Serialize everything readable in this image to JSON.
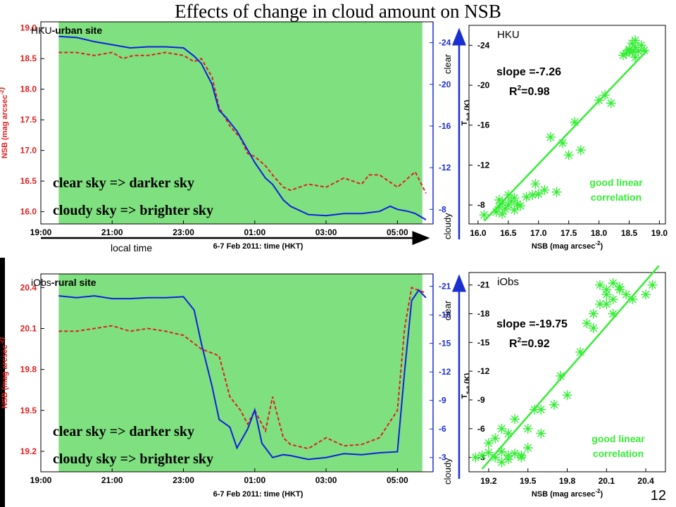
{
  "slide": {
    "title": "Effects of change in cloud amount on NSB",
    "page_number": "12",
    "local_time_label": "local time",
    "clear_label": "clear",
    "cloudy_label": "cloudy",
    "statement_clear": "clear sky => darker sky",
    "statement_cloudy": "cloudy sky => brighter sky"
  },
  "colors": {
    "plot_bg": "#7fe07f",
    "nsb_series": "#e02020",
    "tsa_series": "#1020e0",
    "scatter": "#33ee33",
    "nsb_axis": "#e02020",
    "tsa_axis": "#1a2fd0",
    "arrow": "#1a2fd0"
  },
  "chart_data": [
    {
      "type": "line",
      "site": "HKU",
      "site_suffix": "-urban site",
      "xlabel": "6-7 Feb 2011: time (HKT)",
      "x_ticks": [
        "19:00",
        "21:00",
        "23:00",
        "01:00",
        "03:00",
        "05:00"
      ],
      "xlim": [
        19.0,
        30.0
      ],
      "shaded_range": [
        19.5,
        29.7
      ],
      "ylabel_left": "NSB (mag arcsec",
      "ylabel_left_sup": "-2",
      "ylabel_left_end": ")",
      "ylim_left": [
        15.8,
        19.1
      ],
      "y_ticks_left": [
        "16.0",
        "16.5",
        "17.0",
        "17.5",
        "18.0",
        "18.5",
        "19.0"
      ],
      "y_tick_values_left": [
        16.0,
        16.5,
        17.0,
        17.5,
        18.0,
        18.5,
        19.0
      ],
      "ylabel_right": "T",
      "ylabel_right_sub": "s-a",
      "ylabel_right_end": " (K)",
      "ylim_right": [
        -6.6,
        -26.0
      ],
      "y_ticks_right": [
        "-8",
        "-12",
        "-16",
        "-20",
        "-24"
      ],
      "y_tick_values_right": [
        -8,
        -12,
        -16,
        -20,
        -24
      ],
      "series": [
        {
          "name": "NSB",
          "axis": "left",
          "x": [
            19.5,
            20.0,
            20.5,
            21.0,
            21.3,
            21.6,
            22.0,
            22.5,
            23.0,
            23.3,
            23.5,
            23.8,
            24.0,
            24.3,
            24.6,
            24.8,
            25.0,
            25.3,
            25.5,
            25.8,
            26.0,
            26.5,
            27.0,
            27.5,
            28.0,
            28.2,
            28.5,
            29.0,
            29.5,
            29.8
          ],
          "values": [
            18.6,
            18.6,
            18.55,
            18.6,
            18.5,
            18.55,
            18.55,
            18.6,
            18.55,
            18.45,
            18.5,
            18.2,
            17.7,
            17.4,
            17.2,
            16.95,
            16.9,
            16.75,
            16.6,
            16.4,
            16.35,
            16.45,
            16.4,
            16.55,
            16.45,
            16.6,
            16.6,
            16.4,
            16.65,
            16.3
          ]
        },
        {
          "name": "Tsa",
          "axis": "right",
          "x": [
            19.5,
            20.0,
            20.5,
            21.0,
            21.5,
            22.0,
            22.5,
            23.0,
            23.3,
            23.5,
            23.8,
            24.0,
            24.2,
            24.5,
            24.8,
            25.0,
            25.3,
            25.5,
            25.8,
            26.0,
            26.5,
            27.0,
            27.5,
            28.0,
            28.5,
            28.8,
            29.0,
            29.3,
            29.5,
            29.8
          ],
          "values": [
            -24.6,
            -24.5,
            -24.1,
            -23.8,
            -23.5,
            -23.6,
            -23.6,
            -23.5,
            -22.7,
            -22.0,
            -20.0,
            -17.5,
            -16.8,
            -15.5,
            -13.7,
            -12.5,
            -11.0,
            -10.4,
            -8.9,
            -8.3,
            -7.5,
            -7.4,
            -7.6,
            -7.6,
            -7.8,
            -8.3,
            -8.0,
            -7.8,
            -7.6,
            -7.0
          ]
        }
      ]
    },
    {
      "type": "scatter",
      "site": "HKU",
      "xlabel": "NSB (mag arcsec",
      "xlabel_sup": "-2",
      "xlabel_end": ")",
      "xlim": [
        15.85,
        19.1
      ],
      "x_ticks": [
        "16.0",
        "16.5",
        "17.0",
        "17.5",
        "18.0",
        "18.5",
        "19.0"
      ],
      "x_tick_values": [
        16.0,
        16.5,
        17.0,
        17.5,
        18.0,
        18.5,
        19.0
      ],
      "ylim": [
        -6.1,
        -26.0
      ],
      "y_ticks": [
        "-8",
        "-12",
        "-16",
        "-20",
        "-24"
      ],
      "y_tick_values": [
        -8,
        -12,
        -16,
        -20,
        -24
      ],
      "slope_text": "slope =-7.26",
      "r2_prefix": "R",
      "r2_sup": "2",
      "r2_value": "=0.98",
      "note_line1": "good linear",
      "note_line2": "correlation",
      "fit_line": {
        "x": [
          16.1,
          18.8
        ],
        "y": [
          -6.4,
          -23.5
        ]
      },
      "points": {
        "x": [
          16.1,
          16.3,
          16.35,
          16.4,
          16.45,
          16.5,
          16.55,
          16.6,
          16.6,
          16.65,
          16.7,
          16.4,
          16.35,
          16.5,
          16.8,
          16.9,
          17.0,
          17.1,
          16.95,
          17.3,
          17.5,
          17.7,
          17.4,
          17.2,
          17.6,
          18.0,
          18.1,
          18.2,
          18.45,
          18.5,
          18.55,
          18.6,
          18.65,
          18.7,
          18.5,
          18.4,
          18.6,
          18.75,
          18.55,
          18.6
        ],
        "y": [
          -7.0,
          -7.3,
          -7.8,
          -8.2,
          -7.6,
          -8.0,
          -8.4,
          -8.7,
          -7.5,
          -8.1,
          -7.9,
          -7.1,
          -8.5,
          -9.0,
          -8.8,
          -9.0,
          -9.1,
          -9.5,
          -10.1,
          -9.3,
          -13.0,
          -13.5,
          -14.2,
          -14.8,
          -16.3,
          -18.5,
          -19.0,
          -18.2,
          -23.2,
          -23.5,
          -23.3,
          -23.8,
          -23.4,
          -24.0,
          -23.6,
          -23.0,
          -22.8,
          -23.5,
          -24.2,
          -24.5
        ]
      }
    },
    {
      "type": "line",
      "site": "iObs",
      "site_suffix": "-rural site",
      "xlabel": "6-7 Feb 2011: time (HKT)",
      "x_ticks": [
        "19:00",
        "21:00",
        "23:00",
        "01:00",
        "03:00",
        "05:00"
      ],
      "xlim": [
        19.0,
        30.0
      ],
      "shaded_range": [
        19.5,
        29.7
      ],
      "ylabel_left": "NSB (mag arcsec",
      "ylabel_left_sup": "-2",
      "ylabel_left_end": ")",
      "ylim_left": [
        19.05,
        20.5
      ],
      "y_ticks_left": [
        "19.2",
        "19.5",
        "19.8",
        "20.1",
        "20.4"
      ],
      "y_tick_values_left": [
        19.2,
        19.5,
        19.8,
        20.1,
        20.4
      ],
      "ylabel_right": "T",
      "ylabel_right_sub": "s-a",
      "ylabel_right_end": " (K)",
      "ylim_right": [
        -1.5,
        -22.3
      ],
      "y_ticks_right": [
        "-3",
        "-6",
        "-9",
        "-12",
        "-15",
        "-18",
        "-21"
      ],
      "y_tick_values_right": [
        -3,
        -6,
        -9,
        -12,
        -15,
        -18,
        -21
      ],
      "series": [
        {
          "name": "NSB",
          "axis": "left",
          "x": [
            19.5,
            20.0,
            20.5,
            21.0,
            21.5,
            22.0,
            22.5,
            23.0,
            23.5,
            24.0,
            24.3,
            24.6,
            24.8,
            25.0,
            25.3,
            25.5,
            25.8,
            26.0,
            26.5,
            27.0,
            27.5,
            28.0,
            28.5,
            29.0,
            29.2,
            29.4,
            29.6,
            29.8
          ],
          "values": [
            20.08,
            20.08,
            20.1,
            20.12,
            20.08,
            20.1,
            20.08,
            20.05,
            19.95,
            19.9,
            19.6,
            19.5,
            19.4,
            19.5,
            19.35,
            19.6,
            19.3,
            19.25,
            19.22,
            19.3,
            19.24,
            19.25,
            19.3,
            19.5,
            20.1,
            20.4,
            20.38,
            20.36
          ]
        },
        {
          "name": "Tsa",
          "axis": "right",
          "x": [
            19.5,
            20.0,
            20.5,
            21.0,
            21.5,
            22.0,
            22.5,
            23.0,
            23.3,
            23.5,
            23.8,
            24.0,
            24.3,
            24.5,
            24.8,
            25.0,
            25.2,
            25.5,
            25.8,
            26.0,
            26.5,
            27.0,
            27.5,
            28.0,
            28.5,
            29.0,
            29.2,
            29.4,
            29.6,
            29.8
          ],
          "values": [
            -20.0,
            -19.8,
            -20.0,
            -19.7,
            -19.7,
            -19.8,
            -19.8,
            -19.9,
            -18.5,
            -15.0,
            -10.5,
            -7.0,
            -6.2,
            -4.0,
            -6.0,
            -8.0,
            -4.5,
            -3.0,
            -3.3,
            -3.2,
            -2.8,
            -3.0,
            -3.4,
            -3.3,
            -3.5,
            -3.6,
            -12.0,
            -19.5,
            -20.6,
            -19.8
          ]
        }
      ]
    },
    {
      "type": "scatter",
      "site": "iObs",
      "xlabel": "NSB (mag arcsec",
      "xlabel_sup": "-2",
      "xlabel_end": ")",
      "xlim": [
        19.05,
        20.55
      ],
      "x_ticks": [
        "19.2",
        "19.5",
        "19.8",
        "20.1",
        "20.4"
      ],
      "x_tick_values": [
        19.2,
        19.5,
        19.8,
        20.1,
        20.4
      ],
      "ylim": [
        -1.5,
        -22.3
      ],
      "y_ticks": [
        "-3",
        "-6",
        "-9",
        "-12",
        "-15",
        "-18",
        "-21"
      ],
      "y_tick_values": [
        -3,
        -6,
        -9,
        -12,
        -15,
        -18,
        -21
      ],
      "slope_text": "slope =-19.75",
      "r2_prefix": "R",
      "r2_sup": "2",
      "r2_value": "=0.92",
      "note_line1": "good linear",
      "note_line2": "correlation",
      "fit_line": {
        "x": [
          19.15,
          20.5
        ],
        "y": [
          -1.8,
          -23.0
        ]
      },
      "points": {
        "x": [
          19.1,
          19.15,
          19.2,
          19.25,
          19.3,
          19.35,
          19.4,
          19.45,
          19.2,
          19.25,
          19.3,
          19.35,
          19.4,
          19.5,
          19.55,
          19.6,
          19.3,
          19.35,
          19.45,
          19.5,
          19.6,
          19.7,
          19.75,
          19.8,
          19.9,
          20.0,
          20.05,
          20.1,
          20.15,
          20.2,
          20.25,
          20.3,
          20.4,
          20.45,
          20.05,
          20.1,
          20.15,
          20.2,
          19.95,
          20.0,
          20.1,
          20.15
        ],
        "y": [
          -3.0,
          -3.2,
          -3.5,
          -3.0,
          -3.6,
          -3.2,
          -3.4,
          -3.0,
          -4.5,
          -5.0,
          -6.0,
          -5.5,
          -7.0,
          -6.0,
          -8.0,
          -5.5,
          -2.5,
          -2.8,
          -3.2,
          -4.0,
          -8.0,
          -8.5,
          -11.5,
          -9.5,
          -14.0,
          -18.0,
          -19.0,
          -20.0,
          -19.5,
          -20.5,
          -20.0,
          -19.5,
          -20.0,
          -21.0,
          -21.0,
          -20.5,
          -21.2,
          -20.8,
          -17.0,
          -16.5,
          -19.0,
          -18.0
        ]
      }
    }
  ]
}
